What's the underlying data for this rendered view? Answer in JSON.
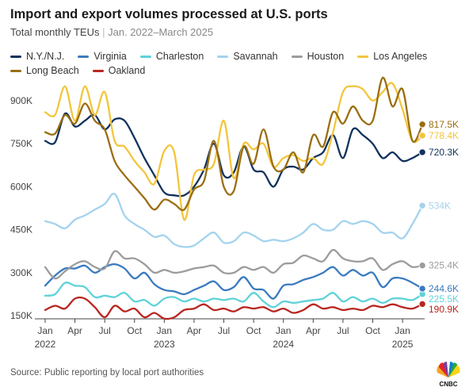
{
  "title": "Import and export volumes processed at U.S. ports",
  "subtitle_main": "Total monthly TEUs",
  "subtitle_sep": "|",
  "subtitle_range": "Jan. 2022–March 2025",
  "source": "Source: Public reporting by local port authorities",
  "logo_text": "CNBC",
  "chart_data": {
    "type": "line",
    "x": [
      "2022-01",
      "2022-02",
      "2022-03",
      "2022-04",
      "2022-05",
      "2022-06",
      "2022-07",
      "2022-08",
      "2022-09",
      "2022-10",
      "2022-11",
      "2022-12",
      "2023-01",
      "2023-02",
      "2023-03",
      "2023-04",
      "2023-05",
      "2023-06",
      "2023-07",
      "2023-08",
      "2023-09",
      "2023-10",
      "2023-11",
      "2023-12",
      "2024-01",
      "2024-02",
      "2024-03",
      "2024-04",
      "2024-05",
      "2024-06",
      "2024-07",
      "2024-08",
      "2024-09",
      "2024-10",
      "2024-11",
      "2024-12",
      "2025-01",
      "2025-02",
      "2025-03"
    ],
    "x_tick_labels": [
      {
        "month": "Jan",
        "year": "2022"
      },
      {
        "month": "Apr",
        "year": ""
      },
      {
        "month": "Jul",
        "year": ""
      },
      {
        "month": "Oct",
        "year": ""
      },
      {
        "month": "Jan",
        "year": "2023"
      },
      {
        "month": "Apr",
        "year": ""
      },
      {
        "month": "Jul",
        "year": ""
      },
      {
        "month": "Oct",
        "year": ""
      },
      {
        "month": "Jan",
        "year": "2024"
      },
      {
        "month": "Apr",
        "year": ""
      },
      {
        "month": "Jul",
        "year": ""
      },
      {
        "month": "Oct",
        "year": ""
      },
      {
        "month": "Jan",
        "year": "2025"
      }
    ],
    "y_ticks": [
      150000,
      300000,
      450000,
      600000,
      750000,
      900000
    ],
    "y_tick_labels": [
      "150K",
      "300K",
      "450K",
      "600K",
      "750K",
      "900K"
    ],
    "ylim": [
      120000,
      980000
    ],
    "grid": false,
    "legend_placement": "top",
    "series": [
      {
        "name": "N.Y./N.J.",
        "color": "#12325c",
        "end_label": "720.3K",
        "values": [
          760,
          755,
          855,
          810,
          830,
          850,
          800,
          835,
          830,
          770,
          700,
          640,
          580,
          570,
          570,
          600,
          660,
          750,
          640,
          650,
          740,
          660,
          650,
          600,
          660,
          670,
          660,
          700,
          720,
          780,
          700,
          800,
          780,
          750,
          700,
          720,
          690,
          700,
          720.3
        ]
      },
      {
        "name": "Virginia",
        "color": "#3a7bbf",
        "end_label": "244.6K",
        "values": [
          255,
          290,
          315,
          315,
          325,
          300,
          320,
          330,
          315,
          280,
          300,
          260,
          240,
          235,
          225,
          240,
          255,
          270,
          240,
          250,
          285,
          245,
          240,
          210,
          255,
          260,
          275,
          285,
          300,
          320,
          290,
          310,
          290,
          300,
          250,
          280,
          280,
          265,
          244.6
        ]
      },
      {
        "name": "Charleston",
        "color": "#5fd2d8",
        "end_label": "225.5K",
        "values": [
          220,
          225,
          265,
          255,
          250,
          215,
          220,
          215,
          230,
          200,
          205,
          185,
          210,
          215,
          200,
          210,
          200,
          210,
          205,
          210,
          200,
          230,
          200,
          180,
          200,
          195,
          200,
          205,
          210,
          230,
          200,
          215,
          200,
          210,
          195,
          210,
          210,
          205,
          225.5
        ]
      },
      {
        "name": "Savannah",
        "color": "#a3d3ee",
        "end_label": "534K",
        "values": [
          480,
          470,
          455,
          485,
          500,
          520,
          540,
          575,
          500,
          470,
          450,
          425,
          430,
          400,
          390,
          395,
          420,
          440,
          405,
          410,
          440,
          430,
          410,
          415,
          410,
          420,
          440,
          470,
          450,
          450,
          480,
          470,
          480,
          470,
          440,
          440,
          420,
          470,
          534
        ]
      },
      {
        "name": "Houston",
        "color": "#9c9c9c",
        "end_label": "325.4K",
        "values": [
          320,
          280,
          305,
          330,
          340,
          320,
          315,
          375,
          350,
          350,
          330,
          300,
          310,
          300,
          305,
          315,
          320,
          325,
          300,
          300,
          320,
          310,
          320,
          300,
          330,
          335,
          360,
          350,
          340,
          380,
          350,
          340,
          340,
          350,
          310,
          330,
          340,
          320,
          325.4
        ]
      },
      {
        "name": "Los Angeles",
        "color": "#f3c53c",
        "end_label": "778.4K",
        "values": [
          860,
          850,
          950,
          830,
          950,
          850,
          930,
          760,
          740,
          690,
          650,
          610,
          725,
          720,
          485,
          640,
          660,
          680,
          830,
          630,
          750,
          730,
          750,
          670,
          700,
          710,
          690,
          700,
          680,
          790,
          930,
          950,
          940,
          900,
          930,
          960,
          870,
          760,
          778.4
        ]
      },
      {
        "name": "Long Beach",
        "color": "#9a6e10",
        "end_label": "817.5K",
        "values": [
          790,
          785,
          850,
          820,
          890,
          830,
          800,
          690,
          640,
          600,
          560,
          520,
          555,
          540,
          520,
          590,
          620,
          760,
          600,
          585,
          740,
          680,
          800,
          670,
          660,
          720,
          650,
          780,
          740,
          860,
          820,
          880,
          830,
          830,
          980,
          880,
          940,
          760,
          817.5
        ]
      },
      {
        "name": "Oakland",
        "color": "#b8261f",
        "end_label": "190.9K",
        "values": [
          170,
          185,
          175,
          210,
          210,
          180,
          145,
          185,
          165,
          175,
          145,
          160,
          140,
          145,
          170,
          175,
          190,
          170,
          175,
          165,
          180,
          175,
          180,
          165,
          175,
          160,
          170,
          190,
          175,
          180,
          170,
          175,
          170,
          185,
          180,
          190,
          180,
          175,
          190.9
        ]
      }
    ]
  }
}
